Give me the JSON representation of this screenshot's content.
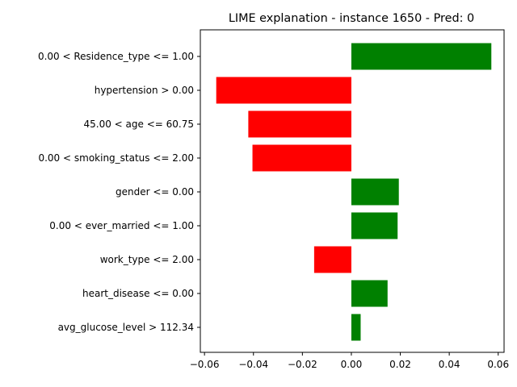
{
  "chart_data": {
    "type": "bar",
    "orientation": "horizontal",
    "title": "LIME explanation - instance 1650 - Pred: 0",
    "xlabel": "",
    "ylabel": "",
    "xlim": [
      -0.0617,
      0.0624
    ],
    "xticks": [
      -0.06,
      -0.04,
      -0.02,
      0.0,
      0.02,
      0.04,
      0.06
    ],
    "xtick_labels": [
      "−0.06",
      "−0.04",
      "−0.02",
      "0.00",
      "0.02",
      "0.04",
      "0.06"
    ],
    "grid": false,
    "legend": false,
    "categories": [
      "0.00 < Residence_type <= 1.00",
      "hypertension > 0.00",
      "45.00 < age <= 60.75",
      "0.00 < smoking_status <= 2.00",
      "gender <= 0.00",
      "0.00 < ever_married <= 1.00",
      "work_type <= 2.00",
      "heart_disease <= 0.00",
      "avg_glucose_level > 112.34"
    ],
    "values": [
      0.0572,
      -0.0552,
      -0.0421,
      -0.0404,
      0.0194,
      0.0189,
      -0.0152,
      0.0148,
      0.0038
    ],
    "colors": {
      "positive": "#008000",
      "negative": "#ff0000"
    }
  }
}
